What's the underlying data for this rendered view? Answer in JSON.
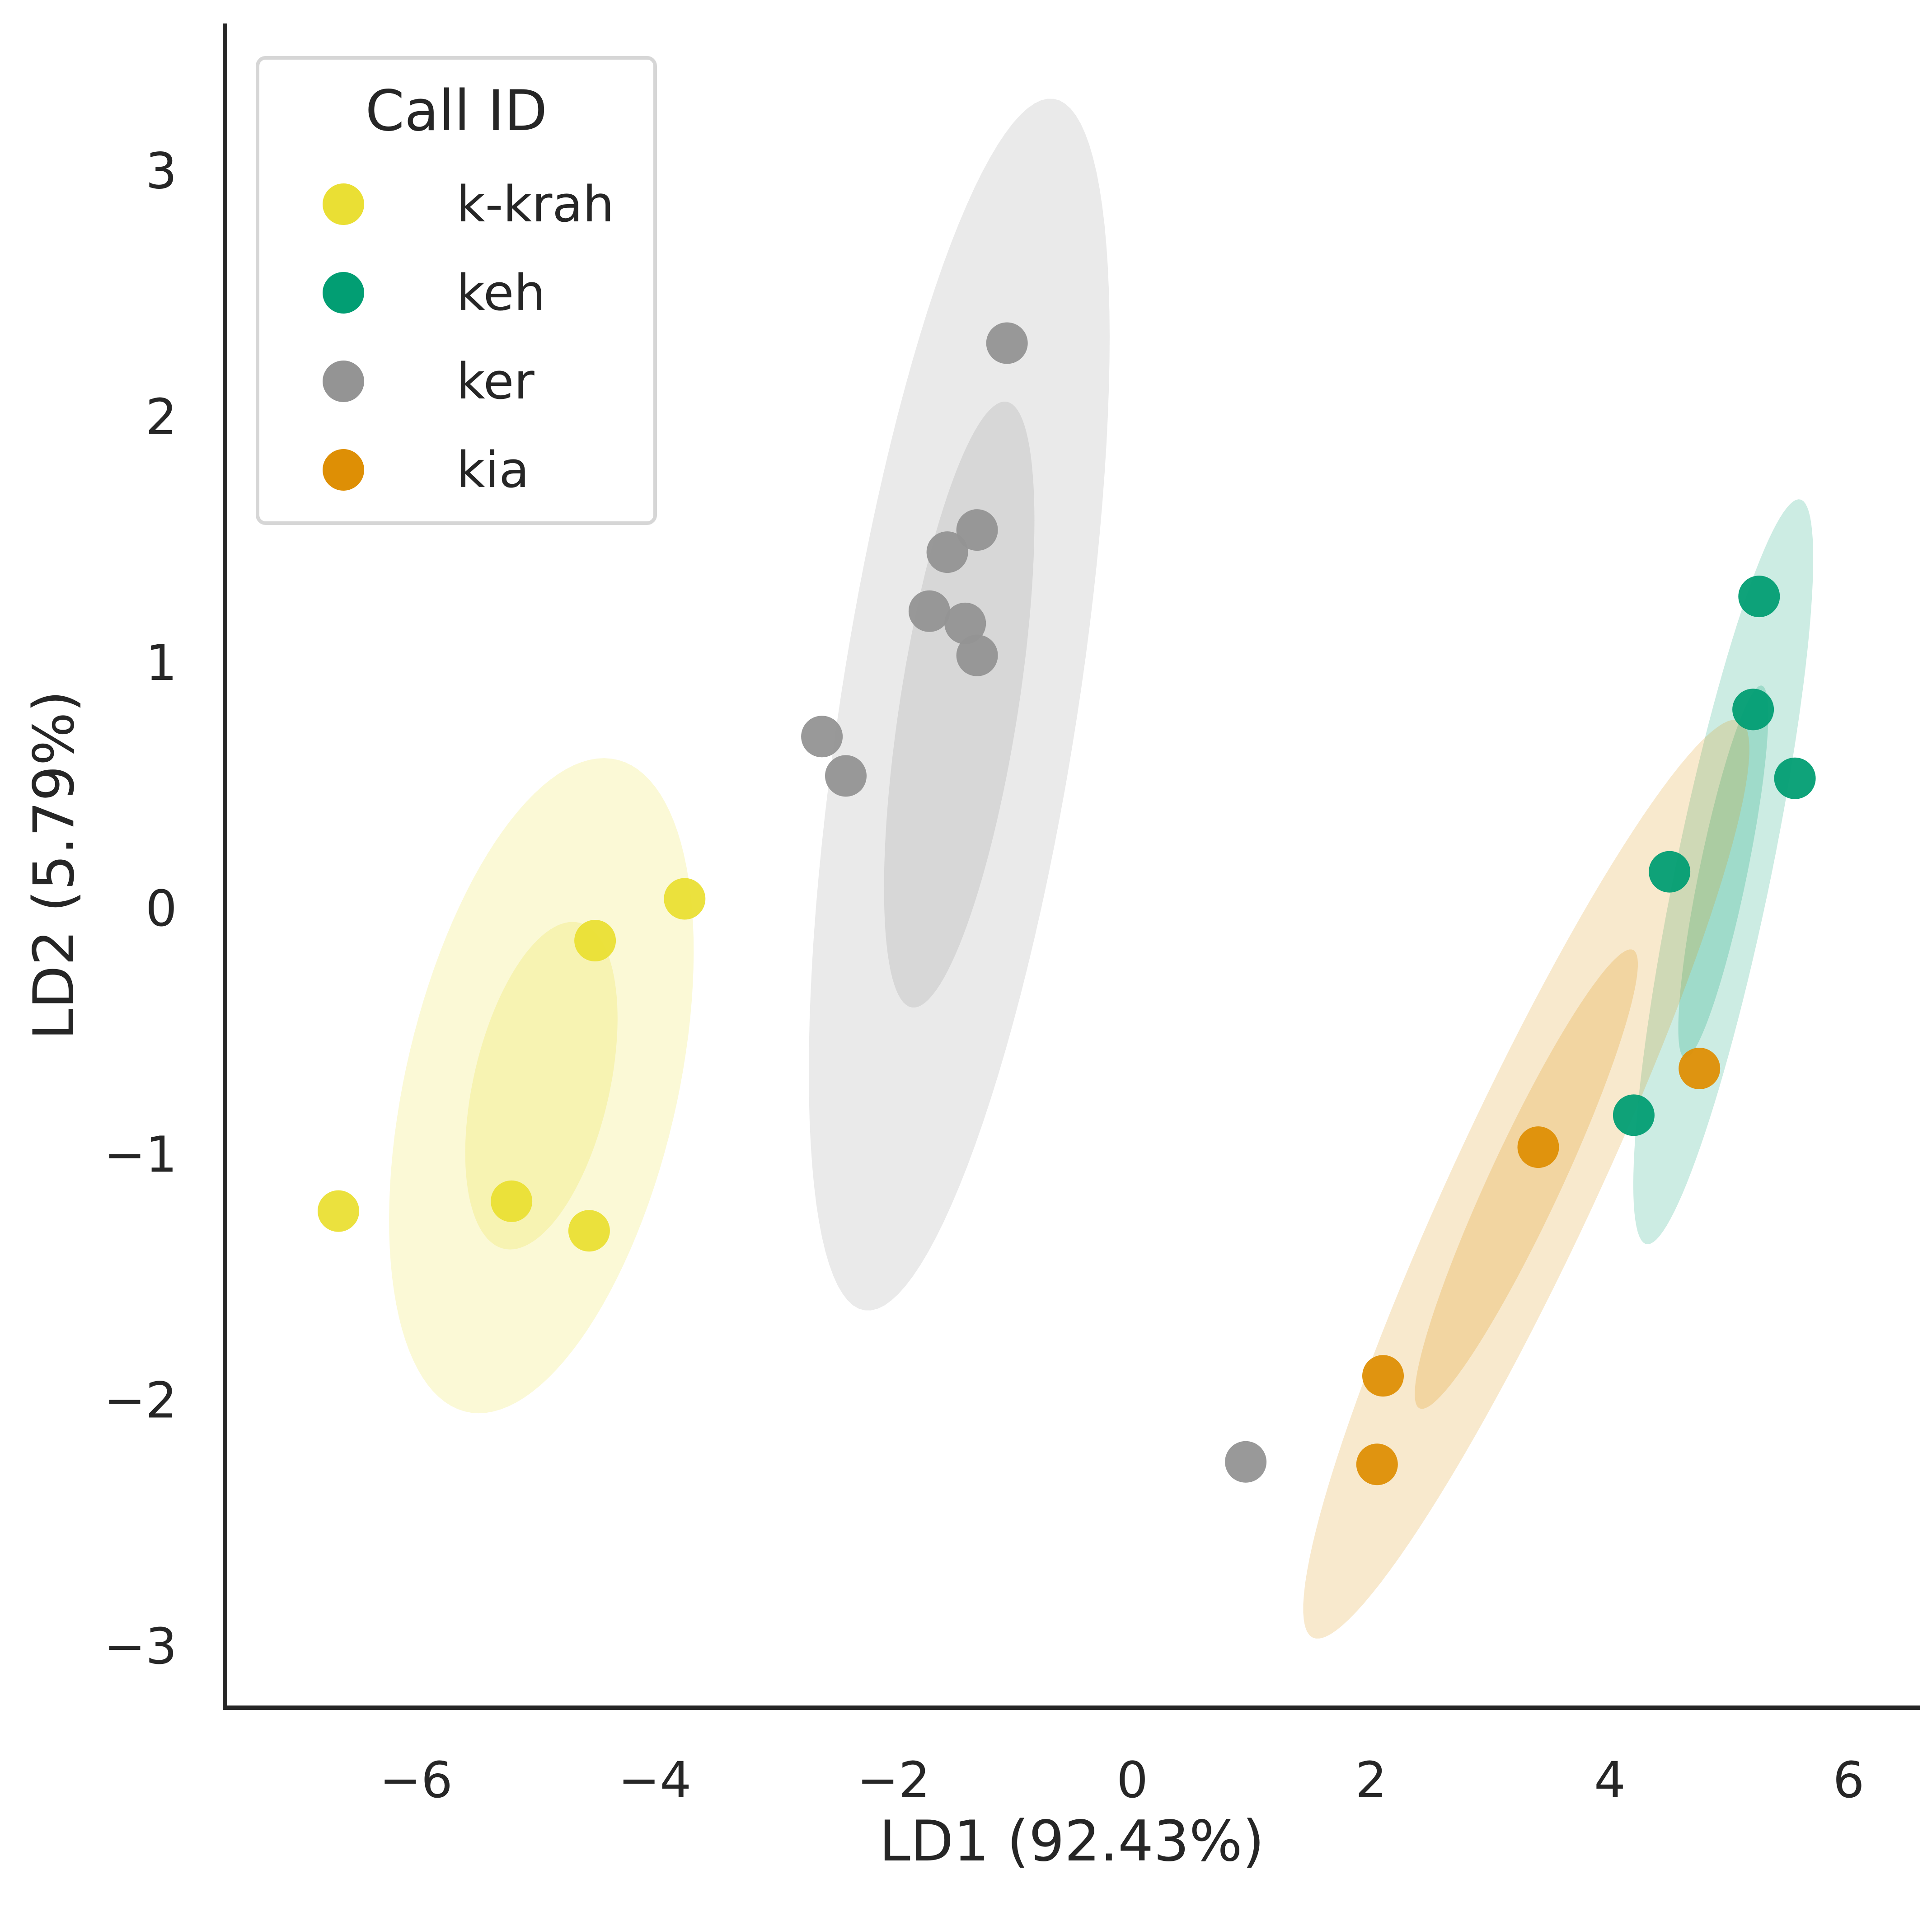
{
  "chart_data": {
    "type": "scatter",
    "title": "",
    "xlabel": "LD1 (92.43%)",
    "ylabel": "LD2 (5.79%)",
    "xlim": [
      -7.6,
      6.6
    ],
    "ylim": [
      -3.25,
      3.6
    ],
    "x_ticks": [
      -6,
      -4,
      -2,
      0,
      2,
      4,
      6
    ],
    "y_ticks": [
      -3,
      -2,
      -1,
      0,
      1,
      2,
      3
    ],
    "x_tick_labels": [
      "−6",
      "−4",
      "−2",
      "0",
      "2",
      "4",
      "6"
    ],
    "y_tick_labels": [
      "−3",
      "−2",
      "−1",
      "0",
      "1",
      "2",
      "3"
    ],
    "grid": false,
    "legend": {
      "title": "Call ID",
      "placement": "top-left"
    },
    "confidence_ellipses": [
      "inner",
      "outer"
    ],
    "series": [
      {
        "name": "k-krah",
        "color": "#eadf34",
        "points": [
          [
            -6.65,
            -1.23
          ],
          [
            -5.2,
            -1.19
          ],
          [
            -4.55,
            -1.31
          ],
          [
            -4.5,
            -0.13
          ],
          [
            -3.75,
            0.04
          ]
        ],
        "ellipse": {
          "center": [
            -4.95,
            -0.72
          ],
          "width": 3.1,
          "height": 2.0,
          "angle_deg": 48,
          "inner_scale": 0.5
        }
      },
      {
        "name": "keh",
        "color": "#029e73",
        "points": [
          [
            5.25,
            1.27
          ],
          [
            5.2,
            0.81
          ],
          [
            5.55,
            0.53
          ],
          [
            4.5,
            0.15
          ],
          [
            4.2,
            -0.84
          ]
        ],
        "ellipse": {
          "center": [
            4.95,
            0.15
          ],
          "width": 3.3,
          "height": 0.75,
          "angle_deg": 66,
          "inner_scale": 0.5
        }
      },
      {
        "name": "ker",
        "color": "#949494",
        "points": [
          [
            -1.05,
            2.3
          ],
          [
            -1.3,
            1.54
          ],
          [
            -1.55,
            1.45
          ],
          [
            -1.7,
            1.21
          ],
          [
            -1.4,
            1.16
          ],
          [
            -1.3,
            1.03
          ],
          [
            -2.6,
            0.7
          ],
          [
            -2.4,
            0.54
          ],
          [
            0.95,
            -2.25
          ]
        ],
        "ellipse": {
          "center": [
            -1.45,
            0.83
          ],
          "width": 5.2,
          "height": 1.9,
          "angle_deg": 70,
          "inner_scale": 0.5
        }
      },
      {
        "name": "kia",
        "color": "#de8f05",
        "points": [
          [
            4.75,
            -0.65
          ],
          [
            3.4,
            -0.97
          ],
          [
            2.1,
            -1.9
          ],
          [
            2.05,
            -2.26
          ]
        ],
        "ellipse": {
          "center": [
            3.3,
            -1.1
          ],
          "width": 5.2,
          "height": 0.95,
          "angle_deg": 45,
          "inner_scale": 0.5
        }
      }
    ]
  }
}
